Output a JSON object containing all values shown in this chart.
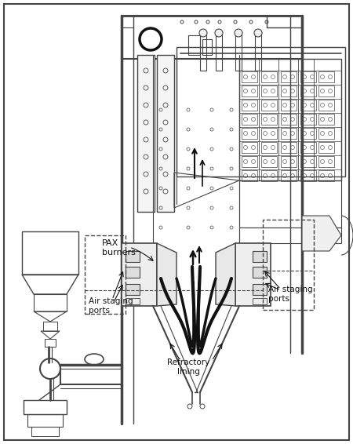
{
  "bg_color": "#ffffff",
  "lc": "#444444",
  "dc": "#111111",
  "gc": "#999999",
  "figsize": [
    4.5,
    5.66
  ],
  "dpi": 100,
  "labels": {
    "pax_burners": "PAX\nburners",
    "air_staging_left": "Air staging\nports",
    "air_staging_right": "Air staging\nports",
    "refractory": "Refractory\nlining"
  }
}
